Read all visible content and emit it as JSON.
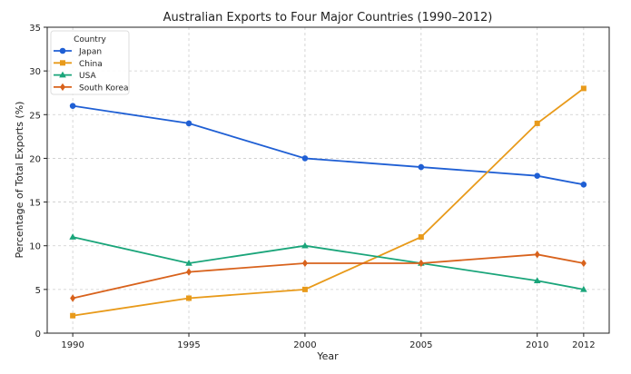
{
  "chart_data": {
    "type": "line",
    "title": "Australian Exports to Four Major Countries (1990–2012)",
    "xlabel": "Year",
    "ylabel": "Percentage of Total Exports (%)",
    "x": [
      1990,
      1995,
      2000,
      2005,
      2010,
      2012
    ],
    "xticks": [
      "1990",
      "1995",
      "2000",
      "2005",
      "2010",
      "2012"
    ],
    "yticks": [
      "0",
      "5",
      "10",
      "15",
      "20",
      "25",
      "30",
      "35"
    ],
    "xlim": [
      1988.9,
      2013.1
    ],
    "ylim": [
      0,
      35
    ],
    "grid": true,
    "legend": {
      "title": "Country",
      "position": "top-left"
    },
    "series": [
      {
        "name": "Japan",
        "values": [
          26,
          24,
          20,
          19,
          18,
          17
        ],
        "color": "#1f5fd4",
        "marker": "circle"
      },
      {
        "name": "China",
        "values": [
          2,
          4,
          5,
          11,
          24,
          28
        ],
        "color": "#e89a1a",
        "marker": "square"
      },
      {
        "name": "USA",
        "values": [
          11,
          8,
          10,
          8,
          6,
          5
        ],
        "color": "#1aa57a",
        "marker": "triangle"
      },
      {
        "name": "South Korea",
        "values": [
          4,
          7,
          8,
          8,
          9,
          8
        ],
        "color": "#d8621c",
        "marker": "diamond"
      }
    ]
  }
}
